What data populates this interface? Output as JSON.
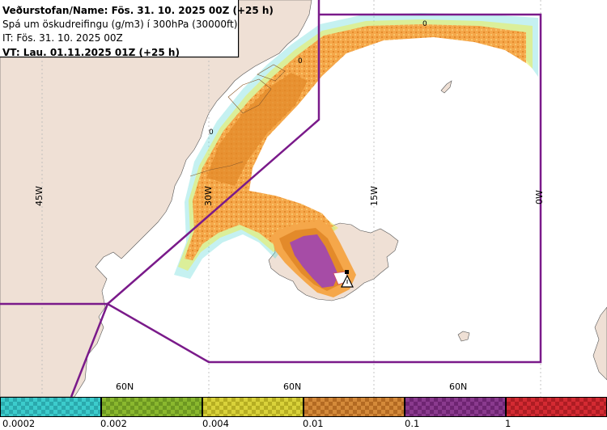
{
  "header": {
    "title_line": "Veðurstofan/Name: Fös. 31. 10. 2025 00Z (+25 h)",
    "description_line": "Spá um öskudreifingu (g/m3) í 300hPa (30000ft)",
    "issue_time_line": "IT: Fös. 31. 10. 2025 00Z",
    "valid_time_line": "VT: Lau. 01.11.2025 01Z (+25 h)"
  },
  "map": {
    "longitude_labels": [
      "45W",
      "30W",
      "15W",
      "0W"
    ],
    "latitude_labels": [
      "60N",
      "60N",
      "60N"
    ],
    "contour_labels": [
      "0",
      "0",
      "0"
    ],
    "colors": {
      "land": "#efe0d5",
      "sea": "#ffffff",
      "fir_boundary": "#7a1a8a",
      "graticule": "#b7b7b7",
      "ash_low": "#f5a74a",
      "ash_mid": "#e38a2a",
      "ash_high": "#a64ca6",
      "ash_fringe": "#ecec50",
      "ash_trace": "#59d6d6"
    }
  },
  "legend": {
    "items": [
      {
        "color": "#3ccccc",
        "pattern": "#2aa9ad",
        "label": "0.0002"
      },
      {
        "color": "#8ab82e",
        "pattern": "#6d9821",
        "label": "0.002"
      },
      {
        "color": "#d9d23a",
        "pattern": "#b6ae22",
        "label": "0.004"
      },
      {
        "color": "#d48a3a",
        "pattern": "#b36a22",
        "label": "0.01"
      },
      {
        "color": "#8a3a8e",
        "pattern": "#6e2472",
        "label": "0.1"
      },
      {
        "color": "#d42a32",
        "pattern": "#ad1c23",
        "label": "1"
      }
    ]
  }
}
